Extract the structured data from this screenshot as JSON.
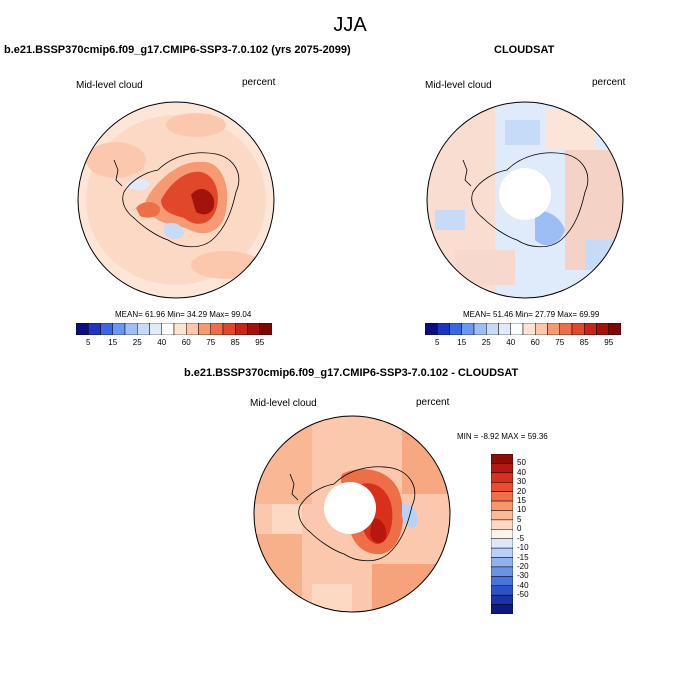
{
  "title": "JJA",
  "panels": [
    {
      "title": "b.e21.BSSP370cmip6.f09_g17.CMIP6-SSP3-7.0.102 (yrs 2075-2099)",
      "left_label": "Mid-level cloud",
      "right_label": "percent",
      "stats": "MEAN=  61.96  Min=  34.29  Max=  99.04"
    },
    {
      "title": "CLOUDSAT",
      "left_label": "Mid-level cloud",
      "right_label": "percent",
      "stats": "MEAN=  51.46  Min=  27.79  Max=  69.99"
    },
    {
      "title": "b.e21.BSSP370cmip6.f09_g17.CMIP6-SSP3-7.0.102 - CLOUDSAT",
      "left_label": "Mid-level cloud",
      "right_label": "percent",
      "stats": "MIN = -8.92 MAX =  59.36"
    }
  ],
  "colorbar_abs": {
    "labels": [
      "5",
      "15",
      "25",
      "40",
      "60",
      "75",
      "85",
      "95"
    ],
    "colors": [
      "#0b0e7e",
      "#1c34c0",
      "#3b66e2",
      "#6b97f0",
      "#9dbdf5",
      "#c5dbf7",
      "#dfeafa",
      "#fdfdfd",
      "#fde3d2",
      "#fbc8ae",
      "#f59a73",
      "#ee6e47",
      "#e1482a",
      "#c72617",
      "#a4120c",
      "#7e0806"
    ]
  },
  "colorbar_diff": {
    "labels": [
      "50",
      "40",
      "30",
      "20",
      "15",
      "10",
      "5",
      "0",
      "-5",
      "-10",
      "-15",
      "-20",
      "-30",
      "-40",
      "-50"
    ],
    "colors": [
      "#8c0c08",
      "#b81710",
      "#d9301d",
      "#ea4c2c",
      "#f27049",
      "#f7966c",
      "#fbb995",
      "#fdd9c3",
      "#fdf3ec",
      "#dde9fa",
      "#b8d1f6",
      "#90b3f0",
      "#6a93e8",
      "#4a74dc",
      "#2d52c8",
      "#1a33a8",
      "#0b1a80"
    ]
  }
}
